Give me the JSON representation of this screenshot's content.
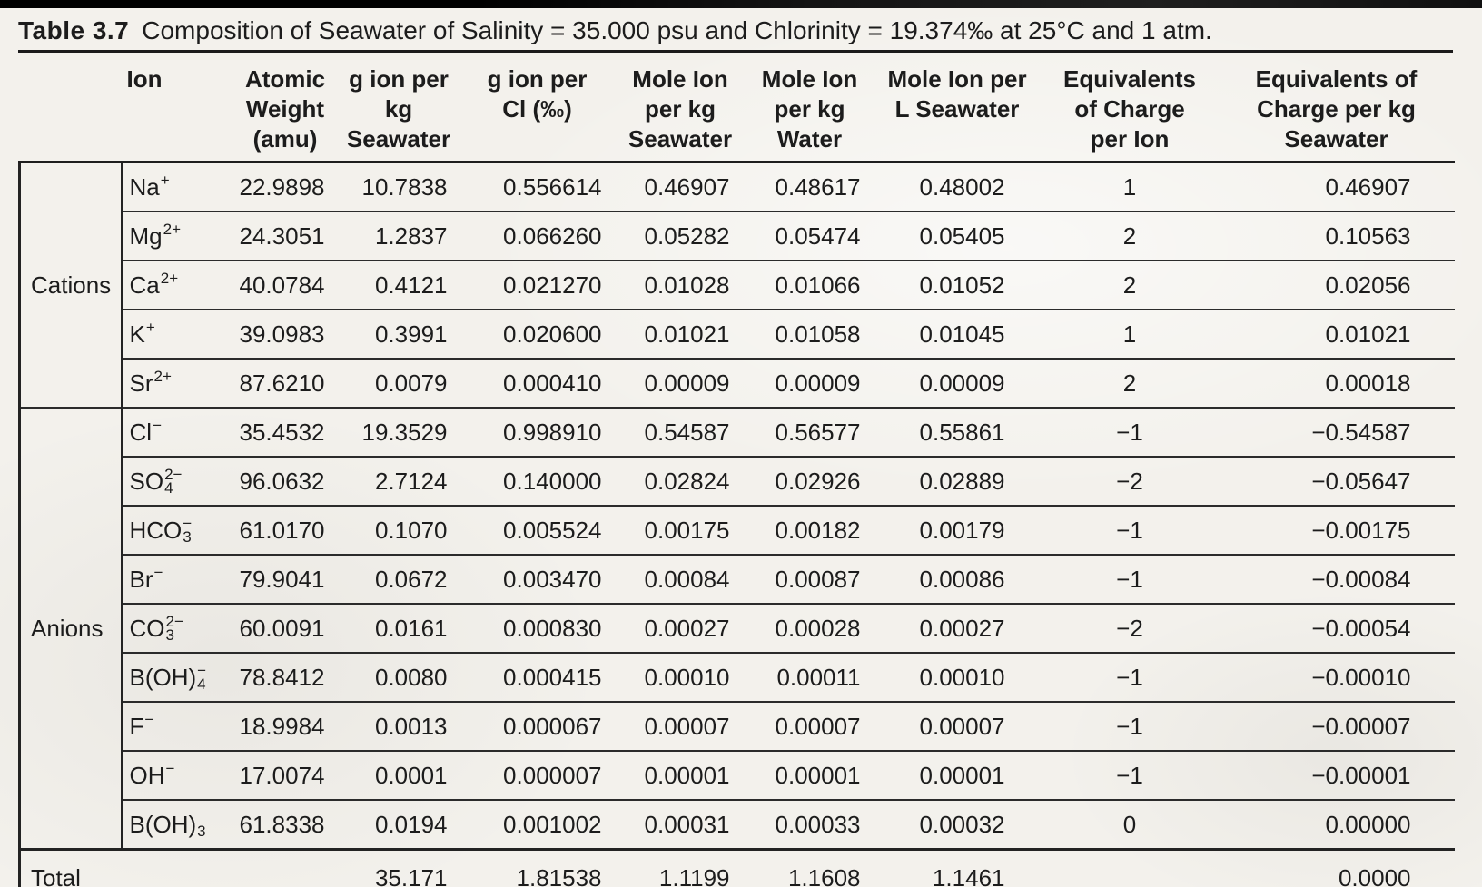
{
  "caption": {
    "label": "Table 3.7",
    "text": "Composition of Seawater of Salinity = 35.000 psu and Chlorinity = 19.374‰ at 25°C and 1 atm."
  },
  "table": {
    "columns": [
      {
        "id": "group",
        "header": ""
      },
      {
        "id": "ion",
        "header": "Ion"
      },
      {
        "id": "atomic_weight_amu",
        "header": "Atomic\nWeight\n(amu)"
      },
      {
        "id": "g_ion_per_kg_seawater",
        "header": "g ion per kg\nSeawater"
      },
      {
        "id": "g_ion_per_cl_permil",
        "header": "g ion per\nCl (‰)"
      },
      {
        "id": "mole_ion_per_kg_seawater",
        "header": "Mole Ion\nper kg\nSeawater"
      },
      {
        "id": "mole_ion_per_kg_water",
        "header": "Mole Ion\nper kg\nWater"
      },
      {
        "id": "mole_ion_per_l_seawater",
        "header": "Mole Ion per\nL Seawater"
      },
      {
        "id": "equivalents_of_charge_per_ion",
        "header": "Equivalents\nof Charge\nper Ion"
      },
      {
        "id": "equivalents_of_charge_per_kg_seawater",
        "header": "Equivalents of\nCharge per kg\nSeawater"
      }
    ],
    "groups": [
      {
        "label": "Cations",
        "rows": [
          {
            "ion": {
              "base": "Na",
              "sup": "+",
              "sub": ""
            },
            "values": [
              "22.9898",
              "10.7838",
              "0.556614",
              "0.46907",
              "0.48617",
              "0.48002",
              "1",
              "0.46907"
            ]
          },
          {
            "ion": {
              "base": "Mg",
              "sup": "2+",
              "sub": ""
            },
            "values": [
              "24.3051",
              "1.2837",
              "0.066260",
              "0.05282",
              "0.05474",
              "0.05405",
              "2",
              "0.10563"
            ]
          },
          {
            "ion": {
              "base": "Ca",
              "sup": "2+",
              "sub": ""
            },
            "values": [
              "40.0784",
              "0.4121",
              "0.021270",
              "0.01028",
              "0.01066",
              "0.01052",
              "2",
              "0.02056"
            ]
          },
          {
            "ion": {
              "base": "K",
              "sup": "+",
              "sub": ""
            },
            "values": [
              "39.0983",
              "0.3991",
              "0.020600",
              "0.01021",
              "0.01058",
              "0.01045",
              "1",
              "0.01021"
            ]
          },
          {
            "ion": {
              "base": "Sr",
              "sup": "2+",
              "sub": ""
            },
            "values": [
              "87.6210",
              "0.0079",
              "0.000410",
              "0.00009",
              "0.00009",
              "0.00009",
              "2",
              "0.00018"
            ]
          }
        ]
      },
      {
        "label": "Anions",
        "rows": [
          {
            "ion": {
              "base": "Cl",
              "sup": "−",
              "sub": ""
            },
            "values": [
              "35.4532",
              "19.3529",
              "0.998910",
              "0.54587",
              "0.56577",
              "0.55861",
              "−1",
              "−0.54587"
            ]
          },
          {
            "ion": {
              "base": "SO",
              "sup": "2−",
              "sub": "4"
            },
            "values": [
              "96.0632",
              "2.7124",
              "0.140000",
              "0.02824",
              "0.02926",
              "0.02889",
              "−2",
              "−0.05647"
            ]
          },
          {
            "ion": {
              "base": "HCO",
              "sup": "−",
              "sub": "3"
            },
            "values": [
              "61.0170",
              "0.1070",
              "0.005524",
              "0.00175",
              "0.00182",
              "0.00179",
              "−1",
              "−0.00175"
            ]
          },
          {
            "ion": {
              "base": "Br",
              "sup": "−",
              "sub": ""
            },
            "values": [
              "79.9041",
              "0.0672",
              "0.003470",
              "0.00084",
              "0.00087",
              "0.00086",
              "−1",
              "−0.00084"
            ]
          },
          {
            "ion": {
              "base": "CO",
              "sup": "2−",
              "sub": "3"
            },
            "values": [
              "60.0091",
              "0.0161",
              "0.000830",
              "0.00027",
              "0.00028",
              "0.00027",
              "−2",
              "−0.00054"
            ]
          },
          {
            "ion": {
              "base": "B(OH)",
              "sup": "−",
              "sub": "4"
            },
            "values": [
              "78.8412",
              "0.0080",
              "0.000415",
              "0.00010",
              "0.00011",
              "0.00010",
              "−1",
              "−0.00010"
            ]
          },
          {
            "ion": {
              "base": "F",
              "sup": "−",
              "sub": ""
            },
            "values": [
              "18.9984",
              "0.0013",
              "0.000067",
              "0.00007",
              "0.00007",
              "0.00007",
              "−1",
              "−0.00007"
            ]
          },
          {
            "ion": {
              "base": "OH",
              "sup": "−",
              "sub": ""
            },
            "values": [
              "17.0074",
              "0.0001",
              "0.000007",
              "0.00001",
              "0.00001",
              "0.00001",
              "−1",
              "−0.00001"
            ]
          },
          {
            "ion": {
              "base": "B(OH)",
              "sup": "",
              "sub": "3"
            },
            "values": [
              "61.8338",
              "0.0194",
              "0.001002",
              "0.00031",
              "0.00033",
              "0.00032",
              "0",
              "0.00000"
            ]
          }
        ]
      }
    ],
    "total_row": {
      "label": "Total",
      "values": [
        "",
        "35.171",
        "1.81538",
        "1.1199",
        "1.1608",
        "1.1461",
        "",
        "0.0000"
      ]
    }
  }
}
